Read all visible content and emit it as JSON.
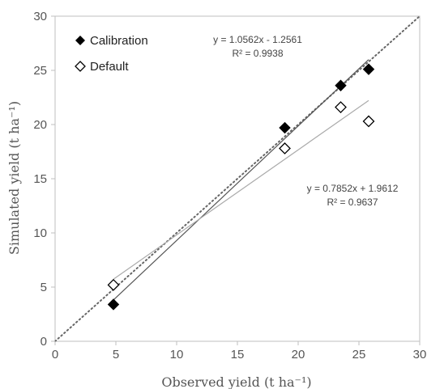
{
  "chart_data": {
    "type": "scatter",
    "xlabel": "Observed yield (t ha⁻¹)",
    "ylabel": "Simulated yield (t ha⁻¹)",
    "xlim": [
      0,
      30
    ],
    "ylim": [
      0,
      30
    ],
    "xticks": [
      0,
      5,
      10,
      15,
      20,
      25,
      30
    ],
    "yticks": [
      0,
      5,
      10,
      15,
      20,
      25,
      30
    ],
    "grid": false,
    "legend_position": "top-left",
    "series": [
      {
        "name": "Calibration",
        "marker": "filled-diamond",
        "color": "#000000",
        "x": [
          4.8,
          18.9,
          23.5,
          25.8
        ],
        "y": [
          3.4,
          19.7,
          23.6,
          25.1
        ],
        "trendline": {
          "slope": 1.0562,
          "intercept": -1.2561,
          "x_range": [
            4.8,
            25.8
          ],
          "color": "#555555"
        },
        "equation": "y = 1.0562x - 1.2561",
        "r2": "R² = 0.9938"
      },
      {
        "name": "Default",
        "marker": "open-diamond",
        "color": "#000000",
        "x": [
          4.8,
          18.9,
          23.5,
          25.8
        ],
        "y": [
          5.2,
          17.8,
          21.6,
          20.3
        ],
        "trendline": {
          "slope": 0.7852,
          "intercept": 1.9612,
          "x_range": [
            4.8,
            25.8
          ],
          "color": "#aaaaaa"
        },
        "equation": "y = 0.7852x + 1.9612",
        "r2": "R² = 0.9637"
      }
    ],
    "reference_line": {
      "type": "1:1",
      "style": "dotted",
      "color": "#666666"
    }
  }
}
